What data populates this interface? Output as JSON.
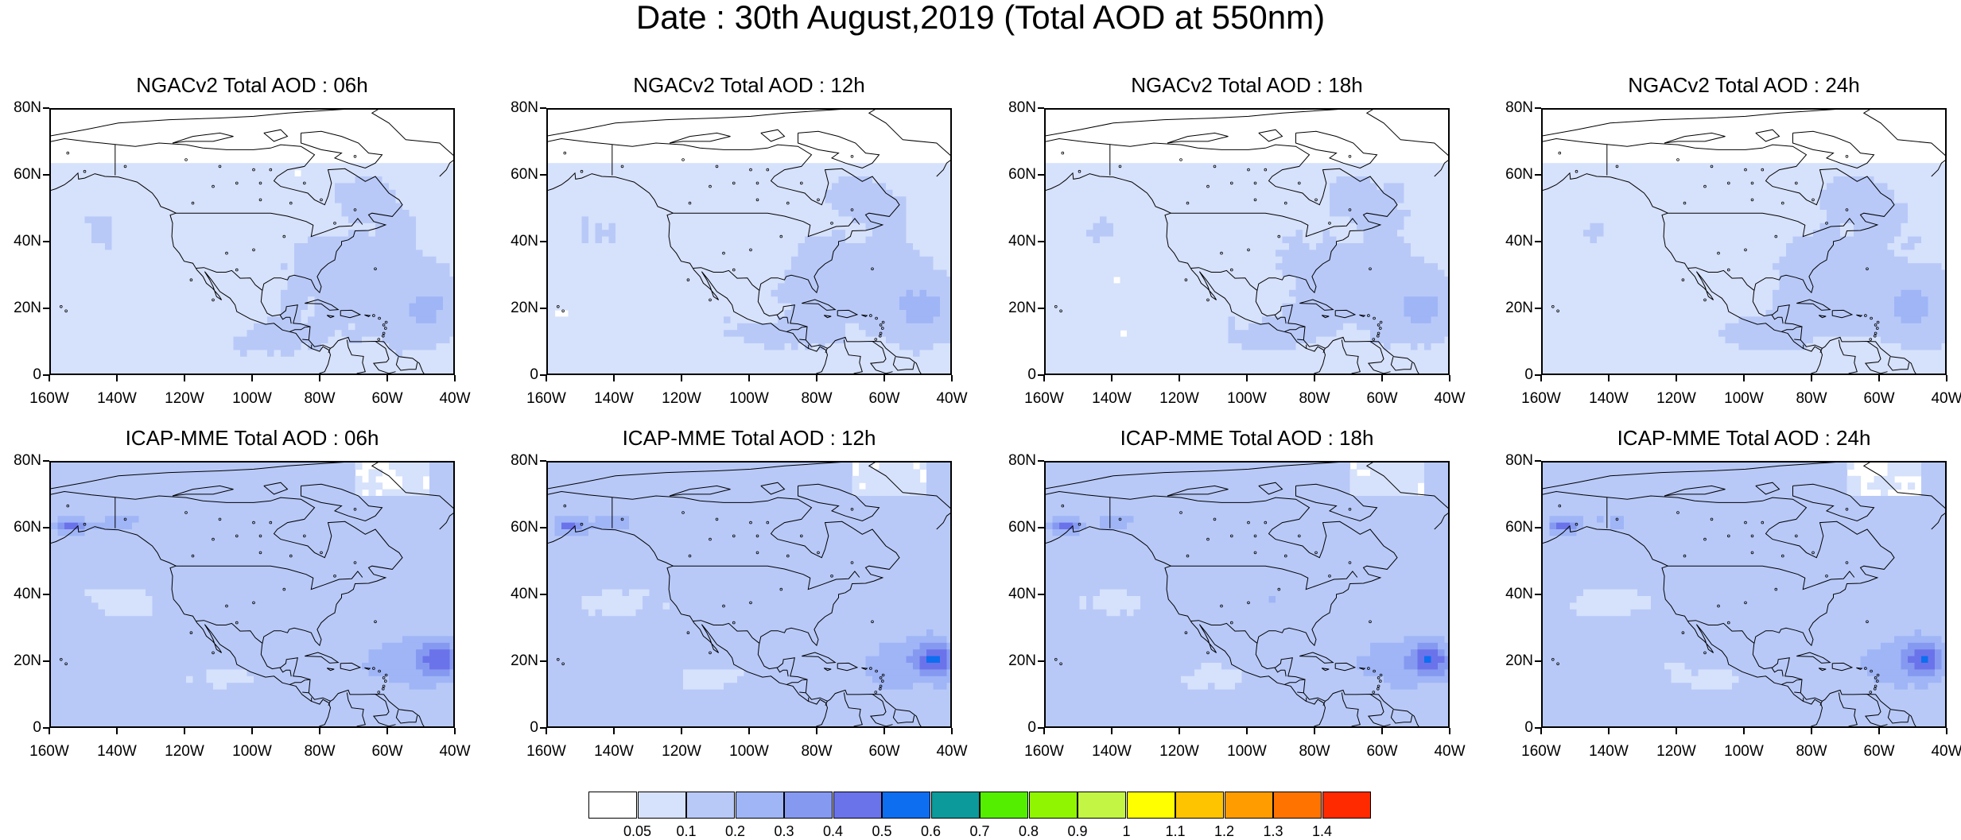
{
  "title": "Date : 30th August,2019 (Total AOD at 550nm)",
  "panels": [
    {
      "title": "NGACv2 Total AOD : 06h",
      "model": "NGACv2",
      "hour": "06h"
    },
    {
      "title": "NGACv2 Total AOD : 12h",
      "model": "NGACv2",
      "hour": "12h"
    },
    {
      "title": "NGACv2 Total AOD : 18h",
      "model": "NGACv2",
      "hour": "18h"
    },
    {
      "title": "NGACv2 Total AOD : 24h",
      "model": "NGACv2",
      "hour": "24h"
    },
    {
      "title": "ICAP-MME Total AOD : 06h",
      "model": "ICAP-MME",
      "hour": "06h"
    },
    {
      "title": "ICAP-MME Total AOD : 12h",
      "model": "ICAP-MME",
      "hour": "12h"
    },
    {
      "title": "ICAP-MME Total AOD : 18h",
      "model": "ICAP-MME",
      "hour": "18h"
    },
    {
      "title": "ICAP-MME Total AOD : 24h",
      "model": "ICAP-MME",
      "hour": "24h"
    }
  ],
  "axes": {
    "lat_labels": [
      "80N",
      "60N",
      "40N",
      "20N",
      "0"
    ],
    "lon_labels": [
      "160W",
      "140W",
      "120W",
      "100W",
      "80W",
      "60W",
      "40W"
    ],
    "lat_range": [
      0,
      80
    ],
    "lon_range": [
      -160,
      -40
    ]
  },
  "colorbar": {
    "labels": [
      "0.05",
      "0.1",
      "0.2",
      "0.3",
      "0.4",
      "0.5",
      "0.6",
      "0.7",
      "0.8",
      "0.9",
      "1",
      "1.1",
      "1.2",
      "1.3",
      "1.4"
    ],
    "colors": [
      "#ffffff",
      "#d6e1fb",
      "#b8c9f8",
      "#9fb5f6",
      "#8699f1",
      "#6b73ea",
      "#0d6ef0",
      "#0c9a9a",
      "#53ee00",
      "#8ff500",
      "#c2f544",
      "#ffff00",
      "#ffc400",
      "#ff9c00",
      "#ff7300",
      "#ff2a00"
    ]
  }
}
